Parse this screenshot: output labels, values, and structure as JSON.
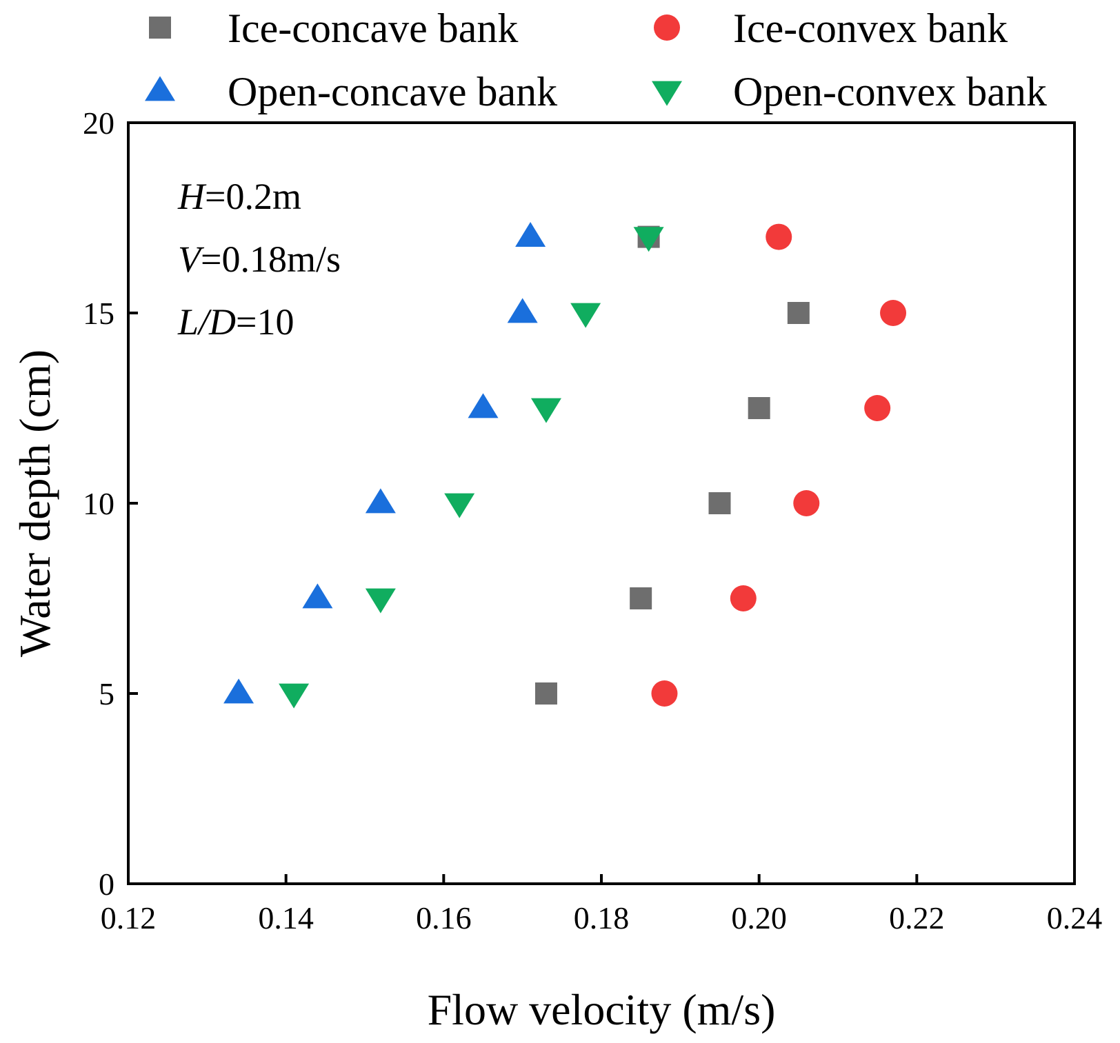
{
  "chart_data": {
    "type": "scatter",
    "title": "",
    "xlabel": "Flow velocity (m/s)",
    "ylabel": "Water depth (cm)",
    "xlim": [
      0.12,
      0.24
    ],
    "ylim": [
      0,
      20
    ],
    "xticks": [
      0.12,
      0.14,
      0.16,
      0.18,
      0.2,
      0.22,
      0.24
    ],
    "xtick_labels": [
      "0.12",
      "0.14",
      "0.16",
      "0.18",
      "0.20",
      "0.22",
      "0.24"
    ],
    "yticks": [
      0,
      5,
      10,
      15,
      20
    ],
    "ytick_labels": [
      "0",
      "5",
      "10",
      "15",
      "20"
    ],
    "grid": false,
    "legend_position": "top",
    "annotations": [
      {
        "italic": "H",
        "text": "=0.2m"
      },
      {
        "italic": "V",
        "text": "=0.18m/s"
      },
      {
        "italic": "L/D",
        "text": "=10"
      }
    ],
    "series": [
      {
        "name": "Ice-concave bank",
        "marker": "square",
        "color": "#6e6e6e",
        "x": [
          0.173,
          0.185,
          0.195,
          0.2,
          0.205,
          0.186
        ],
        "y": [
          5,
          7.5,
          10,
          12.5,
          15,
          17
        ]
      },
      {
        "name": "Ice-convex bank",
        "marker": "circle",
        "color": "#f23a3a",
        "x": [
          0.188,
          0.198,
          0.206,
          0.215,
          0.217,
          0.2025
        ],
        "y": [
          5,
          7.5,
          10,
          12.5,
          15,
          17
        ]
      },
      {
        "name": "Open-concave bank",
        "marker": "triangle-up",
        "color": "#1a6fdc",
        "x": [
          0.134,
          0.144,
          0.152,
          0.165,
          0.17,
          0.171
        ],
        "y": [
          5,
          7.5,
          10,
          12.5,
          15,
          17
        ]
      },
      {
        "name": "Open-convex bank",
        "marker": "triangle-down",
        "color": "#10ad5f",
        "x": [
          0.141,
          0.152,
          0.162,
          0.173,
          0.178,
          0.186
        ],
        "y": [
          5,
          7.5,
          10,
          12.5,
          15,
          17
        ]
      }
    ]
  }
}
